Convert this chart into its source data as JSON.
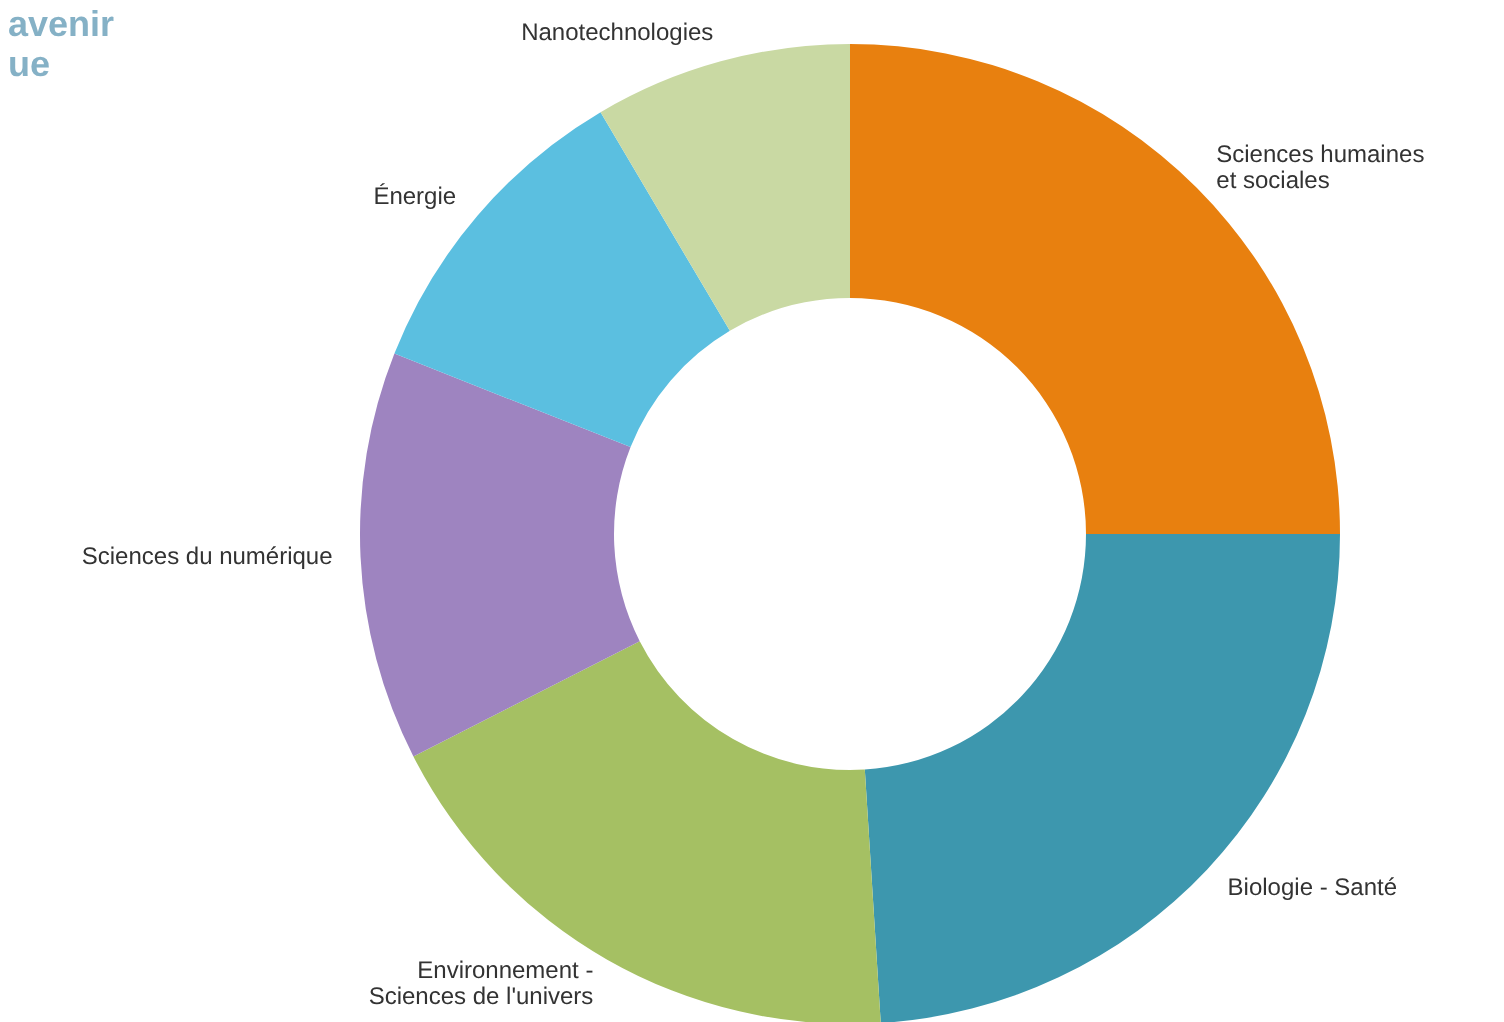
{
  "chart_data": {
    "type": "donut",
    "title": "avenir\nue",
    "categories": [
      "Sciences humaines\net sociales",
      "Biologie - Santé",
      "Environnement -\nSciences de l'univers",
      "Sciences du numérique",
      "Énergie",
      "Nanotechnologies"
    ],
    "values": [
      25,
      24,
      18.5,
      13.5,
      10.5,
      8.5
    ],
    "colors": [
      "#e8800f",
      "#3d97ae",
      "#a5c063",
      "#9e84c0",
      "#5bbfe0",
      "#c9d9a3"
    ]
  }
}
